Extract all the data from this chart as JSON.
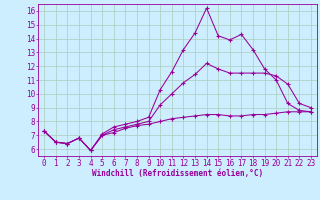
{
  "background_color": "#cceeff",
  "line_color": "#990099",
  "grid_color": "#aaccbb",
  "xlabel": "Windchill (Refroidissement éolien,°C)",
  "x_ticks": [
    0,
    1,
    2,
    3,
    4,
    5,
    6,
    7,
    8,
    9,
    10,
    11,
    12,
    13,
    14,
    15,
    16,
    17,
    18,
    19,
    20,
    21,
    22,
    23
  ],
  "ylim": [
    5.5,
    16.5
  ],
  "xlim": [
    -0.5,
    23.5
  ],
  "y_ticks": [
    6,
    7,
    8,
    9,
    10,
    11,
    12,
    13,
    14,
    15,
    16
  ],
  "series1_y": [
    7.3,
    6.5,
    6.4,
    6.8,
    5.9,
    7.1,
    7.6,
    7.8,
    8.0,
    8.3,
    10.3,
    11.6,
    13.2,
    14.4,
    16.2,
    14.2,
    13.9,
    14.3,
    13.2,
    11.8,
    11.0,
    9.3,
    8.8,
    8.7
  ],
  "series2_y": [
    7.3,
    6.5,
    6.4,
    6.8,
    5.9,
    7.0,
    7.4,
    7.6,
    7.8,
    8.0,
    9.2,
    10.0,
    10.8,
    11.4,
    12.2,
    11.8,
    11.5,
    11.5,
    11.5,
    11.5,
    11.3,
    10.7,
    9.3,
    9.0
  ],
  "series3_y": [
    7.3,
    6.5,
    6.4,
    6.8,
    5.9,
    7.0,
    7.2,
    7.5,
    7.7,
    7.8,
    8.0,
    8.2,
    8.3,
    8.4,
    8.5,
    8.5,
    8.4,
    8.4,
    8.5,
    8.5,
    8.6,
    8.7,
    8.7,
    8.7
  ],
  "tick_fontsize": 5.5,
  "xlabel_fontsize": 5.5,
  "linewidth": 0.75,
  "markersize": 3.5
}
